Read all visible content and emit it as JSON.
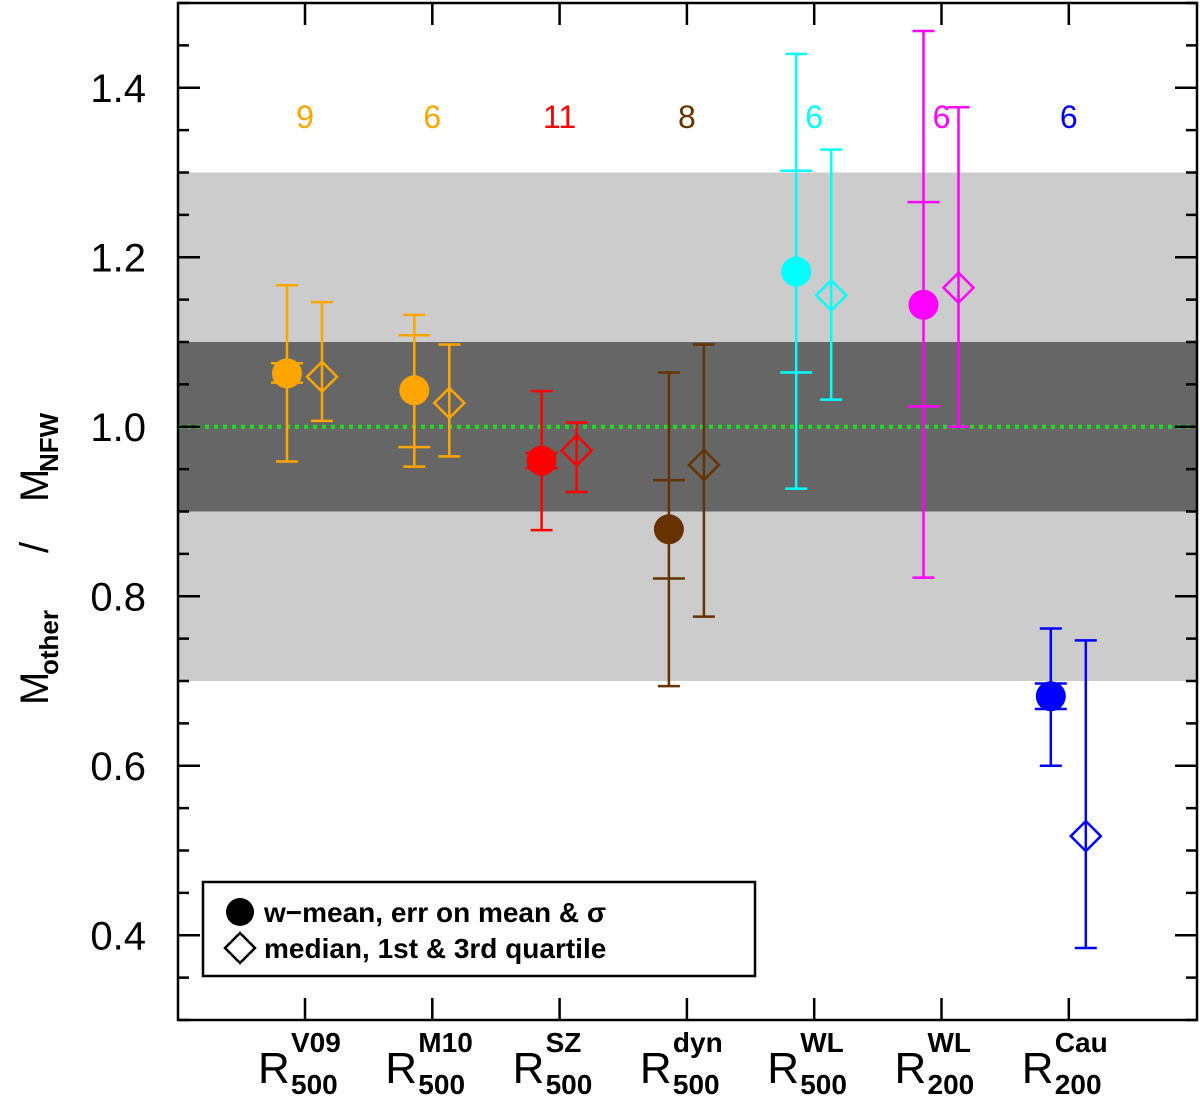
{
  "chart_data": {
    "type": "scatter",
    "title": "",
    "ylabel": {
      "main_left": "M",
      "sub_left": "other",
      "divider": "/",
      "main_right": "M",
      "sub_right": "NFW"
    },
    "ylim": [
      0.3,
      1.5
    ],
    "yticks_major": [
      0.4,
      0.6,
      0.8,
      1.0,
      1.2,
      1.4
    ],
    "ytick_labels": [
      "0.4",
      "0.6",
      "0.8",
      "1.0",
      "1.2",
      "1.4"
    ],
    "yticks_minor": [
      0.3,
      0.35,
      0.45,
      0.5,
      0.55,
      0.65,
      0.7,
      0.75,
      0.85,
      0.9,
      0.95,
      1.05,
      1.1,
      1.15,
      1.25,
      1.3,
      1.35,
      1.45,
      1.5
    ],
    "bands": [
      {
        "name": "outer-band",
        "ymin": 0.7,
        "ymax": 1.3,
        "color": "#cccccc"
      },
      {
        "name": "inner-band",
        "ymin": 0.9,
        "ymax": 1.1,
        "color": "#666666"
      }
    ],
    "reference_line": {
      "y": 1.0,
      "color": "#22dd22",
      "style": "dotted"
    },
    "categories": [
      {
        "main": "R",
        "sup": "V09",
        "sub": "500",
        "count": "9",
        "color": "#ffa500",
        "wmean": 1.063,
        "err_mean": [
          1.052,
          1.075
        ],
        "sigma": [
          0.959,
          1.167
        ],
        "median": 1.059,
        "q1": 1.007,
        "q3": 1.147
      },
      {
        "main": "R",
        "sup": "M10",
        "sub": "500",
        "count": "6",
        "color": "#ffa500",
        "wmean": 1.043,
        "err_mean": [
          0.976,
          1.108
        ],
        "sigma": [
          0.953,
          1.132
        ],
        "median": 1.028,
        "q1": 0.965,
        "q3": 1.097
      },
      {
        "main": "R",
        "sup": "SZ",
        "sub": "500",
        "count": "11",
        "color": "#ff0000",
        "wmean": 0.96,
        "err_mean": [
          0.951,
          0.969
        ],
        "sigma": [
          0.878,
          1.042
        ],
        "median": 0.972,
        "q1": 0.923,
        "q3": 1.005
      },
      {
        "main": "R",
        "sup": "dyn",
        "sub": "500",
        "count": "8",
        "color": "#663300",
        "wmean": 0.879,
        "err_mean": [
          0.821,
          0.937
        ],
        "sigma": [
          0.694,
          1.064
        ],
        "median": 0.955,
        "q1": 0.776,
        "q3": 1.097
      },
      {
        "main": "R",
        "sup": "WL",
        "sub": "500",
        "count": "6",
        "color": "#00ffff",
        "wmean": 1.183,
        "err_mean": [
          1.064,
          1.302
        ],
        "sigma": [
          0.927,
          1.44
        ],
        "median": 1.155,
        "q1": 1.032,
        "q3": 1.327
      },
      {
        "main": "R",
        "sup": "WL",
        "sub": "200",
        "count": "6",
        "color": "#ff00ff",
        "wmean": 1.144,
        "err_mean": [
          1.024,
          1.265
        ],
        "sigma": [
          0.822,
          1.467
        ],
        "median": 1.164,
        "q1": 1.0,
        "q3": 1.377
      },
      {
        "main": "R",
        "sup": "Cau",
        "sub": "200",
        "count": "6",
        "color": "#0000ff",
        "wmean": 0.682,
        "err_mean": [
          0.667,
          0.697
        ],
        "sigma": [
          0.6,
          0.762
        ],
        "median": 0.517,
        "q1": 0.385,
        "q3": 0.748
      }
    ],
    "legend": {
      "position": "bottom-left",
      "entries": [
        {
          "marker": "filled-circle",
          "label": "w−mean, err on mean & σ"
        },
        {
          "marker": "open-diamond",
          "label": "median, 1st & 3rd quartile"
        }
      ]
    }
  }
}
